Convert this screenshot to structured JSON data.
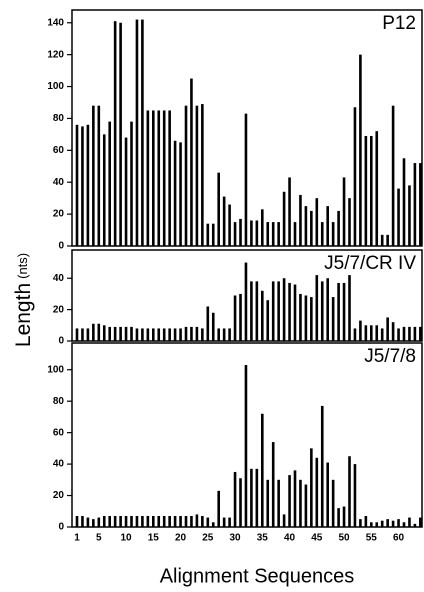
{
  "ylabel": "Length",
  "ylabel_unit": "(nts)",
  "chart_data": [
    {
      "type": "bar",
      "title": "P12",
      "color": "#000000",
      "ylim": [
        0,
        148
      ],
      "yticks": [
        0,
        20,
        40,
        60,
        80,
        100,
        120,
        140
      ],
      "values": [
        76,
        75,
        76,
        88,
        88,
        70,
        78,
        141,
        140,
        68,
        78,
        142,
        142,
        85,
        85,
        85,
        85,
        85,
        66,
        65,
        88,
        105,
        88,
        89,
        14,
        14,
        46,
        31,
        26,
        15,
        17,
        83,
        16,
        16,
        23,
        15,
        15,
        15,
        34,
        43,
        15,
        32,
        25,
        22,
        30,
        15,
        25,
        15,
        22,
        43,
        30,
        87,
        120,
        69,
        69,
        72,
        7,
        7,
        88,
        36,
        55,
        38,
        52,
        52
      ]
    },
    {
      "type": "bar",
      "title": "J5/7/CR IV",
      "color": "#000000",
      "ylim": [
        0,
        58
      ],
      "yticks": [
        0,
        20,
        40
      ],
      "values": [
        8,
        8,
        8,
        11,
        11,
        10,
        9,
        9,
        9,
        9,
        9,
        8,
        8,
        8,
        8,
        8,
        8,
        8,
        8,
        8,
        9,
        9,
        9,
        8,
        22,
        18,
        8,
        8,
        8,
        29,
        30,
        50,
        38,
        38,
        32,
        26,
        38,
        38,
        40,
        37,
        36,
        30,
        29,
        28,
        42,
        38,
        40,
        28,
        37,
        37,
        42,
        8,
        13,
        10,
        10,
        10,
        8,
        15,
        12,
        8,
        9,
        9,
        9,
        9
      ]
    },
    {
      "type": "bar",
      "title": "J5/7/8",
      "color": "#000000",
      "ylim": [
        0,
        117
      ],
      "yticks": [
        0,
        20,
        40,
        60,
        80,
        100
      ],
      "xlabel": "Alignment Sequences",
      "categories": [
        "1",
        null,
        null,
        null,
        "5",
        null,
        null,
        null,
        null,
        "10",
        null,
        null,
        null,
        null,
        "15",
        null,
        null,
        null,
        null,
        "20",
        null,
        null,
        null,
        null,
        "25",
        null,
        null,
        null,
        null,
        "30",
        null,
        null,
        null,
        null,
        "35",
        null,
        null,
        null,
        null,
        "40",
        null,
        null,
        null,
        null,
        "45",
        null,
        null,
        null,
        null,
        "50",
        null,
        null,
        null,
        null,
        "55",
        null,
        null,
        null,
        null,
        "60",
        null,
        null,
        null,
        null
      ],
      "values": [
        7,
        7,
        6,
        5,
        6,
        7,
        7,
        7,
        7,
        7,
        7,
        7,
        7,
        7,
        7,
        7,
        7,
        7,
        7,
        7,
        7,
        7,
        8,
        7,
        6,
        3,
        23,
        6,
        6,
        35,
        31,
        103,
        37,
        37,
        72,
        30,
        54,
        30,
        8,
        33,
        36,
        30,
        27,
        50,
        44,
        77,
        41,
        30,
        12,
        13,
        45,
        40,
        5,
        7,
        3,
        3,
        4,
        5,
        4,
        5,
        3,
        6,
        2,
        6
      ]
    }
  ]
}
